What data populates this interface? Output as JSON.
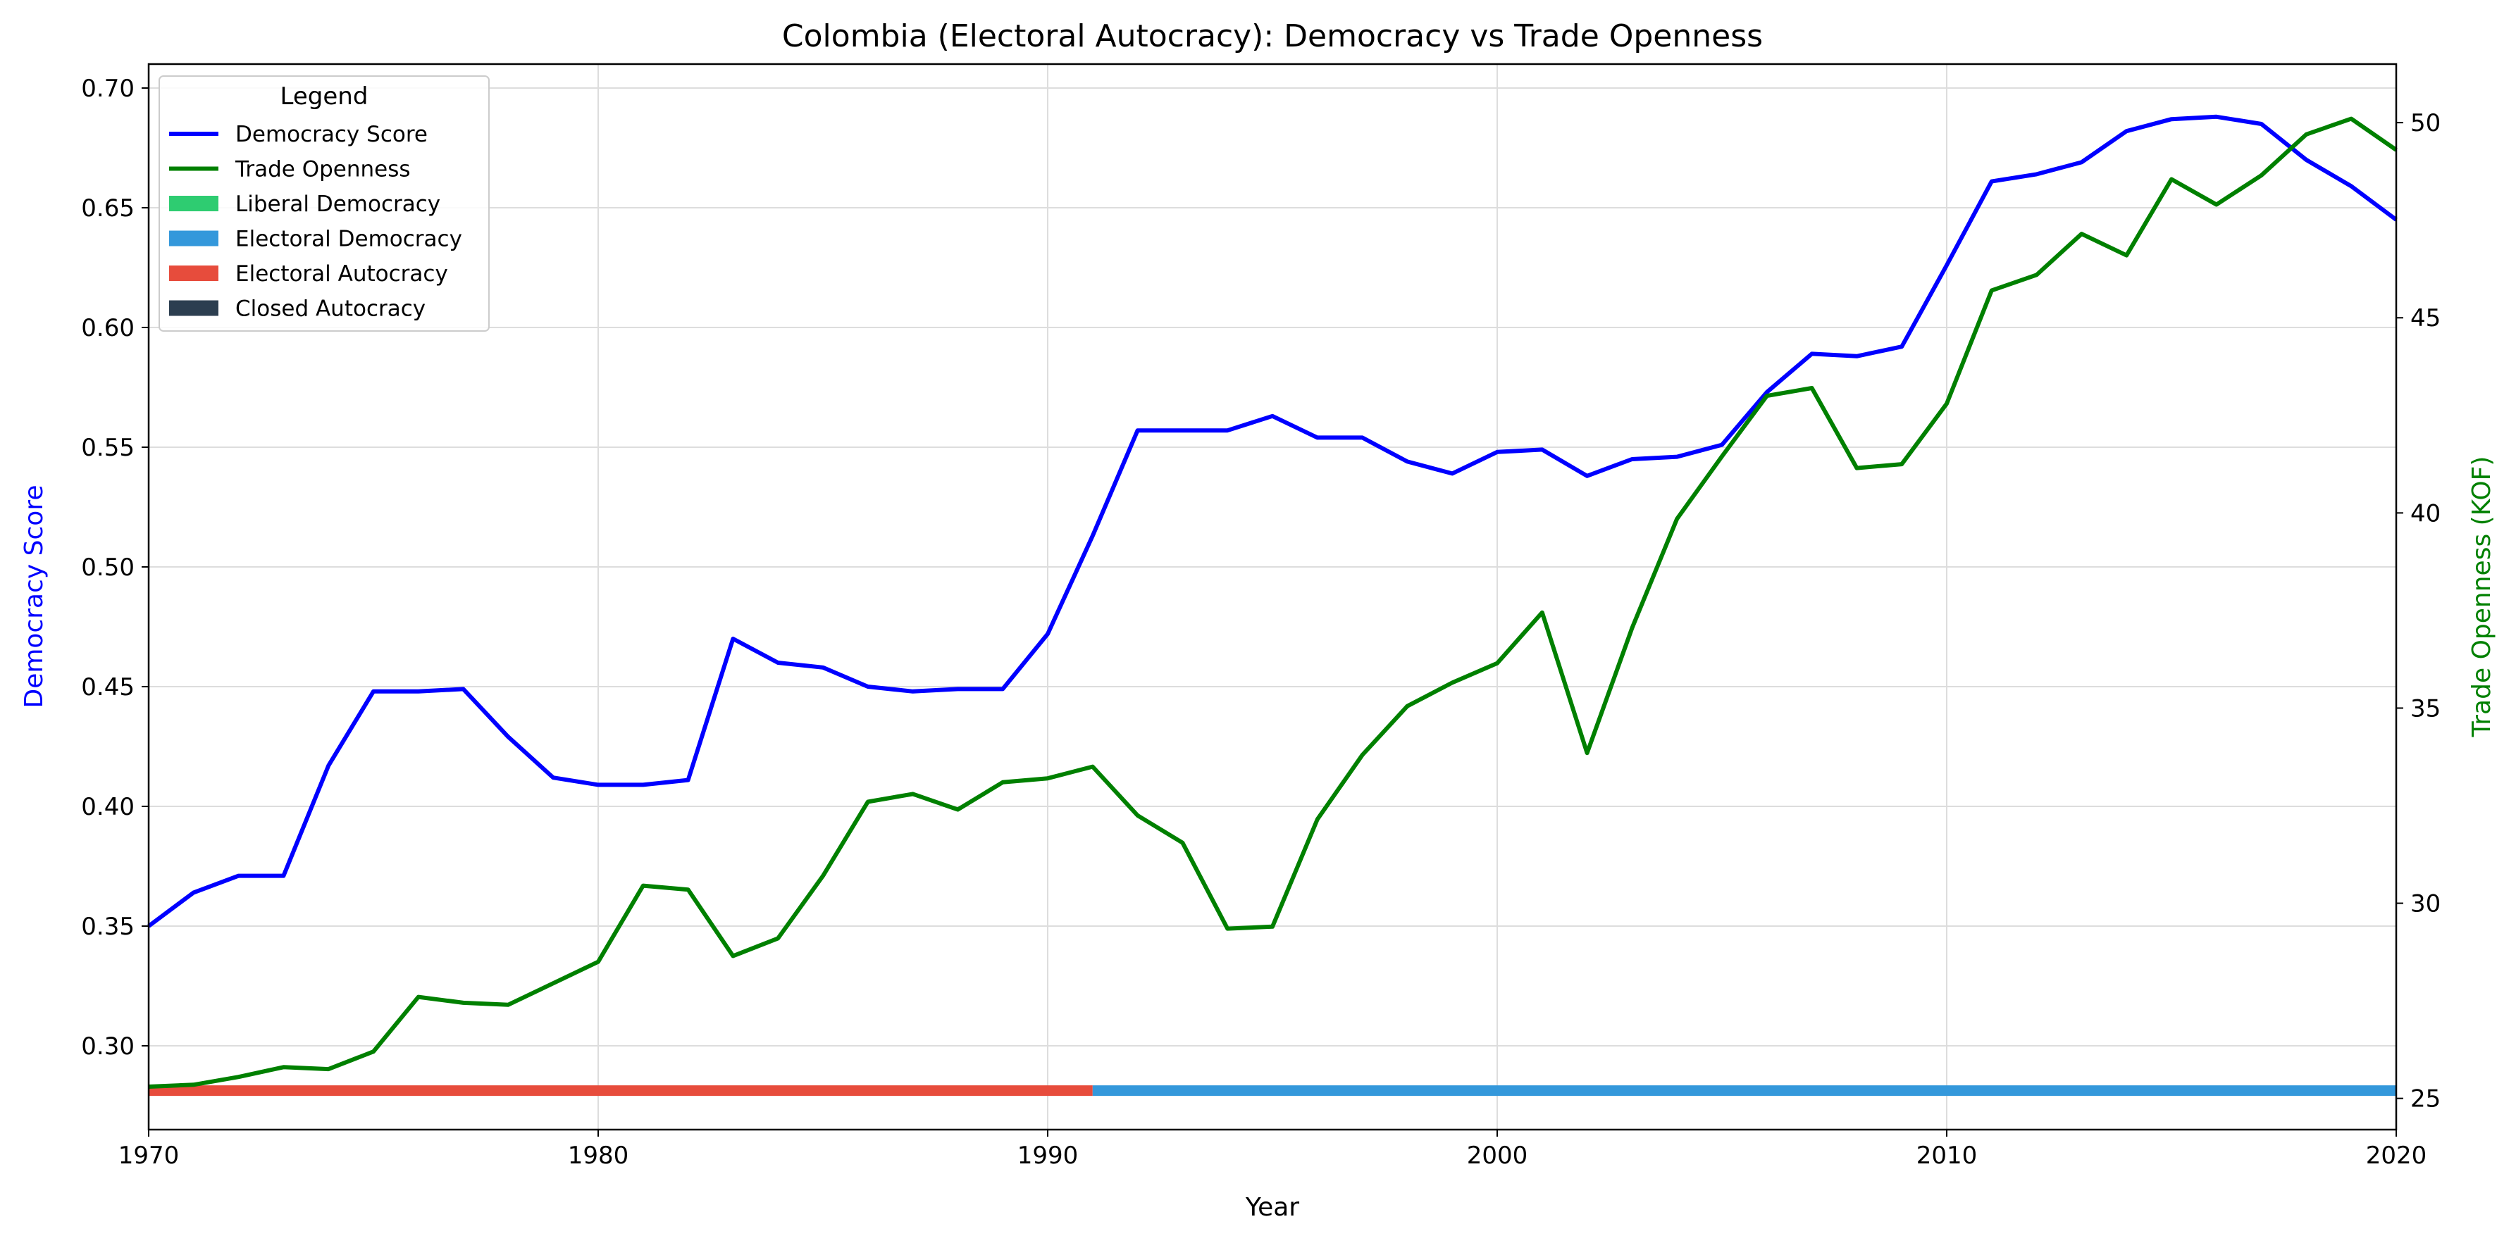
{
  "chart_data": {
    "type": "line",
    "title": "Colombia (Electoral Autocracy): Democracy vs Trade Openness",
    "xlabel": "Year",
    "ylabel_left": "Democracy Score",
    "ylabel_right": "Trade Openness (KOF)",
    "xlim": [
      1970,
      2020
    ],
    "ylim_left": [
      0.265,
      0.71
    ],
    "ylim_right": [
      24.2,
      51.5
    ],
    "x_ticks": [
      1970,
      1980,
      1990,
      2000,
      2010,
      2020
    ],
    "y_left_ticks": [
      0.3,
      0.35,
      0.4,
      0.45,
      0.5,
      0.55,
      0.6,
      0.65,
      0.7
    ],
    "y_left_tick_labels": [
      "0.30",
      "0.35",
      "0.40",
      "0.45",
      "0.50",
      "0.55",
      "0.60",
      "0.65",
      "0.70"
    ],
    "y_right_ticks": [
      25,
      30,
      35,
      40,
      45,
      50
    ],
    "grid": true,
    "legend_placement": "top-left",
    "legend": {
      "title": "Legend",
      "entries": [
        {
          "label": "Democracy Score",
          "kind": "line",
          "color": "#0000ff"
        },
        {
          "label": "Trade Openness",
          "kind": "line",
          "color": "#008000"
        },
        {
          "label": "Liberal Democracy",
          "kind": "patch",
          "color": "#2ecc71"
        },
        {
          "label": "Electoral Democracy",
          "kind": "patch",
          "color": "#3498db"
        },
        {
          "label": "Electoral Autocracy",
          "kind": "patch",
          "color": "#e74c3c"
        },
        {
          "label": "Closed Autocracy",
          "kind": "patch",
          "color": "#2c3e50"
        }
      ]
    },
    "x": [
      1970,
      1971,
      1972,
      1973,
      1974,
      1975,
      1976,
      1977,
      1978,
      1979,
      1980,
      1981,
      1982,
      1983,
      1984,
      1985,
      1986,
      1987,
      1988,
      1989,
      1990,
      1991,
      1992,
      1993,
      1994,
      1995,
      1996,
      1997,
      1998,
      1999,
      2000,
      2001,
      2002,
      2003,
      2004,
      2005,
      2006,
      2007,
      2008,
      2009,
      2010,
      2011,
      2012,
      2013,
      2014,
      2015,
      2016,
      2017,
      2018,
      2019,
      2020
    ],
    "series": [
      {
        "name": "Democracy Score",
        "axis": "left",
        "color": "#0000ff",
        "values": [
          0.35,
          0.364,
          0.371,
          0.371,
          0.417,
          0.448,
          0.448,
          0.449,
          0.429,
          0.412,
          0.409,
          0.409,
          0.411,
          0.47,
          0.46,
          0.458,
          0.45,
          0.448,
          0.449,
          0.449,
          0.472,
          0.513,
          0.557,
          0.557,
          0.557,
          0.563,
          0.554,
          0.554,
          0.544,
          0.539,
          0.548,
          0.549,
          0.538,
          0.545,
          0.546,
          0.551,
          0.573,
          0.589,
          0.588,
          0.592,
          0.626,
          0.661,
          0.664,
          0.669,
          0.682,
          0.687,
          0.688,
          0.685,
          0.67,
          0.659,
          0.645
        ]
      },
      {
        "name": "Trade Openness",
        "axis": "right",
        "color": "#008000",
        "values": [
          25.3,
          25.35,
          25.55,
          25.8,
          25.75,
          26.2,
          27.6,
          27.45,
          27.4,
          27.95,
          28.5,
          30.45,
          30.35,
          28.65,
          29.1,
          30.7,
          32.6,
          32.8,
          32.4,
          33.1,
          33.2,
          33.5,
          32.25,
          31.55,
          29.35,
          29.4,
          32.15,
          33.8,
          35.05,
          35.65,
          36.15,
          37.45,
          33.85,
          37.05,
          39.85,
          41.45,
          43.0,
          43.2,
          41.15,
          41.25,
          42.8,
          45.7,
          46.1,
          47.15,
          46.6,
          48.55,
          47.9,
          48.65,
          49.7,
          50.1,
          49.3
        ]
      }
    ],
    "regime_bands": [
      {
        "regime": "Electoral Autocracy",
        "start": 1970,
        "end": 1991,
        "color": "#e74c3c"
      },
      {
        "regime": "Electoral Democracy",
        "start": 1991,
        "end": 2020,
        "color": "#3498db"
      }
    ],
    "regime_band_level": 0.2813
  }
}
